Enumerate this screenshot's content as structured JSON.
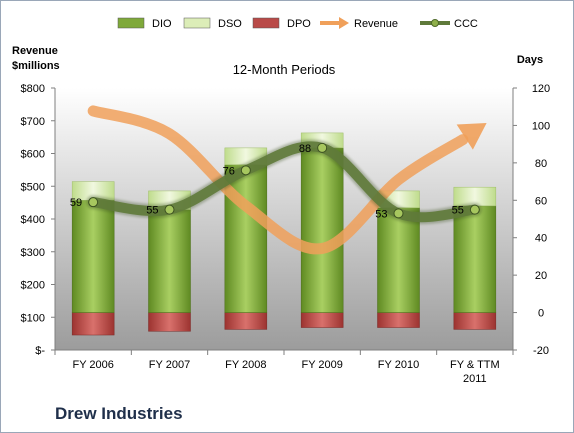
{
  "company": "Drew Industries",
  "chart_data": {
    "type": "bar",
    "subtitle": "12-Month Periods",
    "left_axis": {
      "label_lines": [
        "Revenue",
        "$millions"
      ],
      "range": [
        0,
        800
      ],
      "ticks": [
        0,
        100,
        200,
        300,
        400,
        500,
        600,
        700,
        800
      ],
      "tick_labels": [
        "$-",
        "$100",
        "$200",
        "$300",
        "$400",
        "$500",
        "$600",
        "$700",
        "$800"
      ]
    },
    "right_axis": {
      "label": "Days",
      "range": [
        -20,
        120
      ],
      "ticks": [
        -20,
        0,
        20,
        40,
        60,
        80,
        100,
        120
      ],
      "tick_labels": [
        "-20",
        "0",
        "20",
        "40",
        "60",
        "80",
        "100",
        "120"
      ]
    },
    "categories": [
      [
        "FY 2006"
      ],
      [
        "FY 2007"
      ],
      [
        "FY 2008"
      ],
      [
        "FY 2009"
      ],
      [
        "FY 2010"
      ],
      [
        "FY & TTM",
        "2011"
      ]
    ],
    "legend": {
      "position": "top",
      "items": [
        {
          "label": "DIO",
          "kind": "bar",
          "color": "#7fa93a"
        },
        {
          "label": "DSO",
          "kind": "bar",
          "color": "#dcedb8"
        },
        {
          "label": "DPO",
          "kind": "bar",
          "color": "#b94a48"
        },
        {
          "label": "Revenue",
          "kind": "arrow",
          "color": "#f0a05a"
        },
        {
          "label": "CCC",
          "kind": "line",
          "color": "#5f7a3a"
        }
      ]
    },
    "series": [
      {
        "name": "DIO",
        "axis": "right",
        "values": [
          60,
          55,
          79,
          88,
          56,
          57
        ],
        "base": 0,
        "color": "#7fa93a"
      },
      {
        "name": "DSO",
        "axis": "right",
        "values": [
          10,
          10,
          9,
          8,
          9,
          10
        ],
        "base": "DIO",
        "color": "#dcedb8"
      },
      {
        "name": "DPO",
        "axis": "right",
        "values": [
          -12,
          -10,
          -9,
          -8,
          -8,
          -9
        ],
        "base": 0,
        "color": "#b94a48"
      },
      {
        "name": "Revenue",
        "axis": "left",
        "values": [
          730,
          660,
          440,
          310,
          520,
          670
        ],
        "color": "#f0a05a"
      },
      {
        "name": "CCC",
        "axis": "right",
        "values": [
          59,
          55,
          76,
          88,
          53,
          55
        ],
        "labels": [
          "59",
          "55",
          "76",
          "88",
          "53",
          "55"
        ],
        "color": "#5f7a3a"
      }
    ],
    "grid": false
  }
}
